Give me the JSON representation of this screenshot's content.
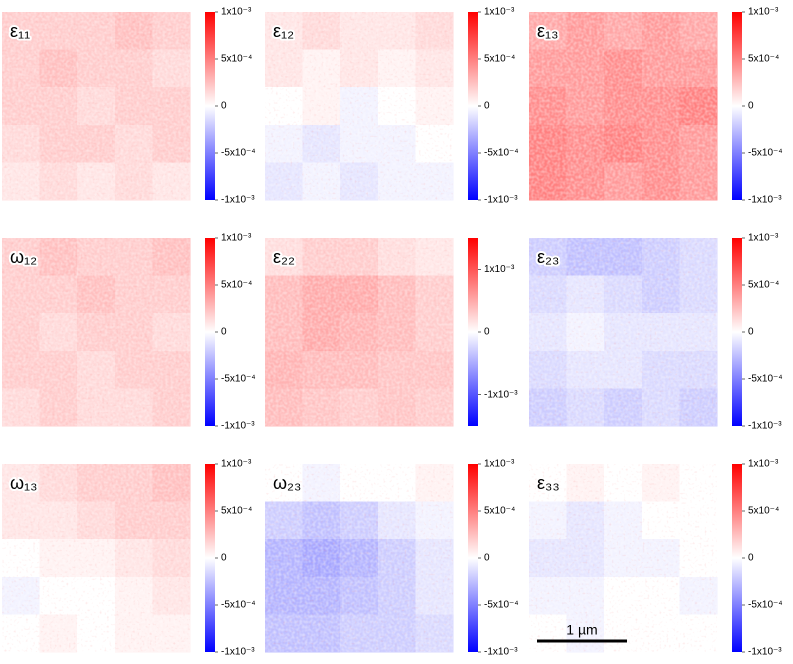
{
  "chart_data": [
    {
      "type": "heatmap",
      "title": "ε₁₁",
      "colormap": [
        "#0000ff",
        "#ffffff",
        "#ff0000"
      ],
      "zlim": [
        -0.001,
        0.001
      ],
      "zticks": [
        {
          "value": 0.001,
          "label": "1x10⁻³"
        },
        {
          "value": 0.0005,
          "label": "5x10⁻⁴"
        },
        0,
        {
          "value": -0.0005,
          "label": "-5x10⁻⁴"
        },
        {
          "value": -0.001,
          "label": "-1x10⁻³"
        }
      ],
      "values": [
        [
          0.0002,
          0.0002,
          0.0002,
          0.00025,
          0.0002
        ],
        [
          0.0002,
          0.00025,
          0.0002,
          0.0002,
          0.00015
        ],
        [
          0.0002,
          0.0002,
          0.00015,
          0.0002,
          0.0002
        ],
        [
          0.00015,
          0.0002,
          0.0002,
          0.00015,
          0.0002
        ],
        [
          0.0001,
          0.00015,
          0.0001,
          0.00015,
          0.0001
        ]
      ]
    },
    {
      "type": "heatmap",
      "title": "ε₁₂",
      "colormap": [
        "#0000ff",
        "#ffffff",
        "#ff0000"
      ],
      "zlim": [
        -0.001,
        0.001
      ],
      "zticks": [
        {
          "value": 0.001,
          "label": "1x10⁻³"
        },
        {
          "value": 0.0005,
          "label": "5x10⁻⁴"
        },
        0,
        {
          "value": -0.0005,
          "label": "-5x10⁻⁴"
        },
        {
          "value": -0.001,
          "label": "-1x10⁻³"
        }
      ],
      "values": [
        [
          0.0001,
          0.00015,
          0.0001,
          0.0001,
          0.00015
        ],
        [
          0.0001,
          5e-05,
          0.0001,
          5e-05,
          0.0001
        ],
        [
          0,
          5e-05,
          -5e-05,
          0,
          5e-05
        ],
        [
          -5e-05,
          -0.0001,
          -5e-05,
          -5e-05,
          0
        ],
        [
          -0.0001,
          -5e-05,
          -0.0001,
          -5e-05,
          -5e-05
        ]
      ]
    },
    {
      "type": "heatmap",
      "title": "ε₁₃",
      "colormap": [
        "#0000ff",
        "#ffffff",
        "#ff0000"
      ],
      "zlim": [
        -0.001,
        0.001
      ],
      "zticks": [
        {
          "value": 0.001,
          "label": "1x10⁻³"
        },
        {
          "value": 0.0005,
          "label": "5x10⁻⁴"
        },
        0,
        {
          "value": -0.0005,
          "label": "-5x10⁻⁴"
        },
        {
          "value": -0.001,
          "label": "-1x10⁻³"
        }
      ],
      "values": [
        [
          0.00035,
          0.0004,
          0.00035,
          0.0004,
          0.00035
        ],
        [
          0.0004,
          0.0004,
          0.00045,
          0.0004,
          0.0004
        ],
        [
          0.00045,
          0.0004,
          0.00045,
          0.00045,
          0.0005
        ],
        [
          0.0005,
          0.00045,
          0.0005,
          0.00045,
          0.0004
        ],
        [
          0.0005,
          0.00045,
          0.0004,
          0.00045,
          0.0004
        ]
      ]
    },
    {
      "type": "heatmap",
      "title": "ω₁₂",
      "colormap": [
        "#0000ff",
        "#ffffff",
        "#ff0000"
      ],
      "zlim": [
        -0.001,
        0.001
      ],
      "zticks": [
        {
          "value": 0.001,
          "label": "1x10⁻³"
        },
        {
          "value": 0.0005,
          "label": "5x10⁻⁴"
        },
        0,
        {
          "value": -0.0005,
          "label": "-5x10⁻⁴"
        },
        {
          "value": -0.001,
          "label": "-1x10⁻³"
        }
      ],
      "values": [
        [
          0.0002,
          0.00025,
          0.0002,
          0.0002,
          0.00025
        ],
        [
          0.0002,
          0.0002,
          0.00025,
          0.0002,
          0.0002
        ],
        [
          0.0002,
          0.00015,
          0.0002,
          0.0002,
          0.00015
        ],
        [
          0.0002,
          0.0002,
          0.00015,
          0.0002,
          0.0002
        ],
        [
          0.00015,
          0.0002,
          0.00015,
          0.00015,
          0.0002
        ]
      ]
    },
    {
      "type": "heatmap",
      "title": "ε₂₂",
      "colormap": [
        "#0000ff",
        "#ffffff",
        "#ff0000"
      ],
      "zlim": [
        -0.0015,
        0.0015
      ],
      "zticks": [
        {
          "value": 0.001,
          "label": "1x10⁻³"
        },
        0,
        {
          "value": -0.001,
          "label": "-1x10⁻³"
        }
      ],
      "values": [
        [
          0.0002,
          0.0003,
          0.0003,
          0.0002,
          0.00015
        ],
        [
          0.0004,
          0.0005,
          0.0005,
          0.0004,
          0.0003
        ],
        [
          0.0004,
          0.0005,
          0.00045,
          0.0004,
          0.0003
        ],
        [
          0.00045,
          0.0004,
          0.0004,
          0.00035,
          0.00035
        ],
        [
          0.0004,
          0.00035,
          0.0003,
          0.00035,
          0.0003
        ]
      ]
    },
    {
      "type": "heatmap",
      "title": "ε₂₃",
      "colormap": [
        "#0000ff",
        "#ffffff",
        "#ff0000"
      ],
      "zlim": [
        -0.001,
        0.001
      ],
      "zticks": [
        {
          "value": 0.001,
          "label": "1x10⁻³"
        },
        {
          "value": 0.0005,
          "label": "5x10⁻⁴"
        },
        0,
        {
          "value": -0.0005,
          "label": "-5x10⁻⁴"
        },
        {
          "value": -0.001,
          "label": "-1x10⁻³"
        }
      ],
      "values": [
        [
          -0.0002,
          -0.00025,
          -0.00025,
          -0.0002,
          -0.00015
        ],
        [
          -0.00015,
          -0.0001,
          -0.00015,
          -0.0002,
          -0.00015
        ],
        [
          -0.0001,
          -5e-05,
          -0.0001,
          -0.0001,
          -0.0001
        ],
        [
          -0.00015,
          -0.0001,
          -0.0001,
          -0.00015,
          -0.00015
        ],
        [
          -0.0002,
          -0.00015,
          -0.0002,
          -0.00015,
          -0.0002
        ]
      ]
    },
    {
      "type": "heatmap",
      "title": "ω₁₃",
      "colormap": [
        "#0000ff",
        "#ffffff",
        "#ff0000"
      ],
      "zlim": [
        -0.001,
        0.001
      ],
      "zticks": [
        {
          "value": 0.001,
          "label": "1x10⁻³"
        },
        {
          "value": 0.0005,
          "label": "5x10⁻⁴"
        },
        0,
        {
          "value": -0.0005,
          "label": "-5x10⁻⁴"
        },
        {
          "value": -0.001,
          "label": "-1x10⁻³"
        }
      ],
      "values": [
        [
          0.0001,
          0.00015,
          0.0002,
          0.0002,
          0.00025
        ],
        [
          0.0001,
          0.0001,
          0.00015,
          0.0002,
          0.0002
        ],
        [
          0,
          5e-05,
          5e-05,
          0.0001,
          0.00015
        ],
        [
          -5e-05,
          0,
          0,
          5e-05,
          0.0001
        ],
        [
          0,
          5e-05,
          0,
          5e-05,
          5e-05
        ]
      ]
    },
    {
      "type": "heatmap",
      "title": "ω₂₃",
      "colormap": [
        "#0000ff",
        "#ffffff",
        "#ff0000"
      ],
      "zlim": [
        -0.001,
        0.001
      ],
      "zticks": [
        {
          "value": 0.001,
          "label": "1x10⁻³"
        },
        {
          "value": 0.0005,
          "label": "5x10⁻⁴"
        },
        0,
        {
          "value": -0.0005,
          "label": "-5x10⁻⁴"
        },
        {
          "value": -0.001,
          "label": "-1x10⁻³"
        }
      ],
      "values": [
        [
          0,
          -5e-05,
          0,
          0,
          5e-05
        ],
        [
          -0.0002,
          -0.00025,
          -0.0002,
          -0.0001,
          -5e-05
        ],
        [
          -0.0003,
          -0.00035,
          -0.0003,
          -0.0002,
          -0.0001
        ],
        [
          -0.0003,
          -0.0003,
          -0.00025,
          -0.0002,
          -0.0001
        ],
        [
          -0.00025,
          -0.00025,
          -0.0002,
          -0.0002,
          -0.00015
        ]
      ]
    },
    {
      "type": "heatmap",
      "title": "ε₃₃",
      "colormap": [
        "#0000ff",
        "#ffffff",
        "#ff0000"
      ],
      "zlim": [
        -0.001,
        0.001
      ],
      "zticks": [
        {
          "value": 0.001,
          "label": "1x10⁻³"
        },
        {
          "value": 0.0005,
          "label": "5x10⁻⁴"
        },
        0,
        {
          "value": -0.0005,
          "label": "-5x10⁻⁴"
        },
        {
          "value": -0.001,
          "label": "-1x10⁻³"
        }
      ],
      "values": [
        [
          0,
          5e-05,
          0,
          5e-05,
          0
        ],
        [
          -5e-05,
          -0.0001,
          -5e-05,
          0,
          0
        ],
        [
          -0.0001,
          -0.0001,
          -5e-05,
          -5e-05,
          0
        ],
        [
          -5e-05,
          -5e-05,
          0,
          0,
          -5e-05
        ],
        [
          0,
          -5e-05,
          0,
          0,
          0
        ]
      ]
    }
  ],
  "scale_bar_label": "1 µm"
}
